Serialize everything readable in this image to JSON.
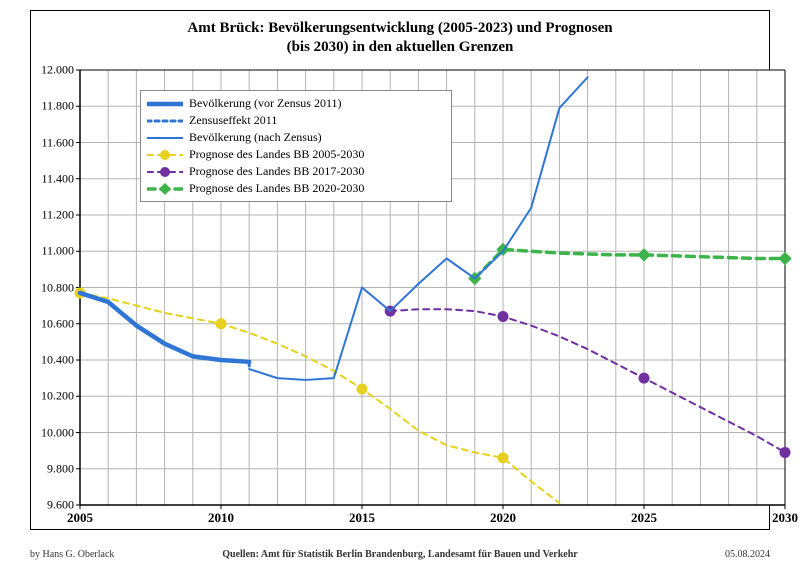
{
  "title_line1": "Amt Brück:  Bevölkerungsentwicklung (2005-2023) und Prognosen",
  "title_line2": "(bis 2030) in den aktuellen Grenzen",
  "title_fontsize": 15,
  "byline": "by Hans G. Oberlack",
  "sources": "Quellen: Amt für Statistik Berlin Brandenburg, Landesamt für Bauen und Verkehr",
  "date": "05.08.2024",
  "footer_fontsize": 10,
  "plot": {
    "type": "line",
    "xlim": [
      2005,
      2030
    ],
    "ylim": [
      9600,
      12000
    ],
    "ytick_step": 200,
    "xtick_step": 5,
    "y_thousand_sep": ".",
    "background_color": "#ffffff",
    "grid_color": "#b3b3b3",
    "axis_color": "#000000",
    "tick_fontsize": 12
  },
  "legend": {
    "position": "upper-left-inside",
    "fontsize": 12,
    "border_color": "#888888",
    "bg_color": "#ffffff",
    "items": [
      {
        "label": "Bevölkerung (vor Zensus 2011)",
        "series": "pop_before"
      },
      {
        "label": "Zensuseffekt 2011",
        "series": "census_effect"
      },
      {
        "label": "Bevölkerung (nach Zensus)",
        "series": "pop_after"
      },
      {
        "label": "Prognose des Landes BB 2005-2030",
        "series": "prog2005"
      },
      {
        "label": "Prognose des Landes BB 2017-2030",
        "series": "prog2017"
      },
      {
        "label": "Prognose des Landes BB 2020-2030",
        "series": "prog2020"
      }
    ]
  },
  "series": {
    "pop_before": {
      "color": "#2e75d6",
      "line_width": 4.5,
      "dash": "none",
      "marker": "none",
      "data": [
        [
          2005,
          10770
        ],
        [
          2006,
          10720
        ],
        [
          2007,
          10590
        ],
        [
          2008,
          10490
        ],
        [
          2009,
          10420
        ],
        [
          2010,
          10400
        ],
        [
          2011,
          10390
        ]
      ]
    },
    "census_effect": {
      "color": "#2e75d6",
      "line_width": 3,
      "dash": "4,4",
      "marker": "none",
      "data": [
        [
          2011,
          10390
        ],
        [
          2011,
          10350
        ]
      ]
    },
    "pop_after": {
      "color": "#2e75d6",
      "line_width": 2,
      "dash": "none",
      "marker": "none",
      "data": [
        [
          2011,
          10350
        ],
        [
          2012,
          10300
        ],
        [
          2013,
          10290
        ],
        [
          2014,
          10300
        ],
        [
          2015,
          10800
        ],
        [
          2016,
          10670
        ],
        [
          2017,
          10820
        ],
        [
          2018,
          10960
        ],
        [
          2019,
          10850
        ],
        [
          2020,
          11000
        ],
        [
          2021,
          11240
        ],
        [
          2022,
          11790
        ],
        [
          2023,
          11960
        ]
      ]
    },
    "prog2005": {
      "color": "#e6d21e",
      "line_width": 2,
      "dash": "6,5",
      "marker": "circle",
      "marker_size": 5,
      "marker_years": [
        2005,
        2010,
        2015,
        2020
      ],
      "data": [
        [
          2005,
          10770
        ],
        [
          2006,
          10740
        ],
        [
          2007,
          10700
        ],
        [
          2008,
          10660
        ],
        [
          2009,
          10630
        ],
        [
          2010,
          10600
        ],
        [
          2011,
          10550
        ],
        [
          2012,
          10490
        ],
        [
          2013,
          10420
        ],
        [
          2014,
          10340
        ],
        [
          2015,
          10240
        ],
        [
          2016,
          10130
        ],
        [
          2017,
          10010
        ],
        [
          2018,
          9930
        ],
        [
          2019,
          9890
        ],
        [
          2020,
          9860
        ],
        [
          2021,
          9730
        ],
        [
          2022,
          9610
        ]
      ]
    },
    "prog2017": {
      "color": "#7030a0",
      "line_width": 2,
      "dash": "6,5",
      "marker": "circle",
      "marker_size": 5,
      "marker_years": [
        2016,
        2020,
        2025,
        2030
      ],
      "data": [
        [
          2016,
          10670
        ],
        [
          2017,
          10680
        ],
        [
          2018,
          10680
        ],
        [
          2019,
          10670
        ],
        [
          2020,
          10640
        ],
        [
          2021,
          10590
        ],
        [
          2022,
          10530
        ],
        [
          2023,
          10460
        ],
        [
          2024,
          10380
        ],
        [
          2025,
          10300
        ],
        [
          2026,
          10220
        ],
        [
          2027,
          10140
        ],
        [
          2028,
          10060
        ],
        [
          2029,
          9980
        ],
        [
          2030,
          9890
        ]
      ]
    },
    "prog2020": {
      "color": "#3cb44b",
      "line_width": 3.5,
      "dash": "8,6",
      "marker": "diamond",
      "marker_size": 6,
      "marker_years": [
        2019,
        2020,
        2025,
        2030
      ],
      "data": [
        [
          2019,
          10850
        ],
        [
          2020,
          11010
        ],
        [
          2021,
          11000
        ],
        [
          2022,
          10990
        ],
        [
          2023,
          10985
        ],
        [
          2024,
          10980
        ],
        [
          2025,
          10980
        ],
        [
          2026,
          10975
        ],
        [
          2027,
          10970
        ],
        [
          2028,
          10965
        ],
        [
          2029,
          10960
        ],
        [
          2030,
          10960
        ]
      ]
    }
  }
}
